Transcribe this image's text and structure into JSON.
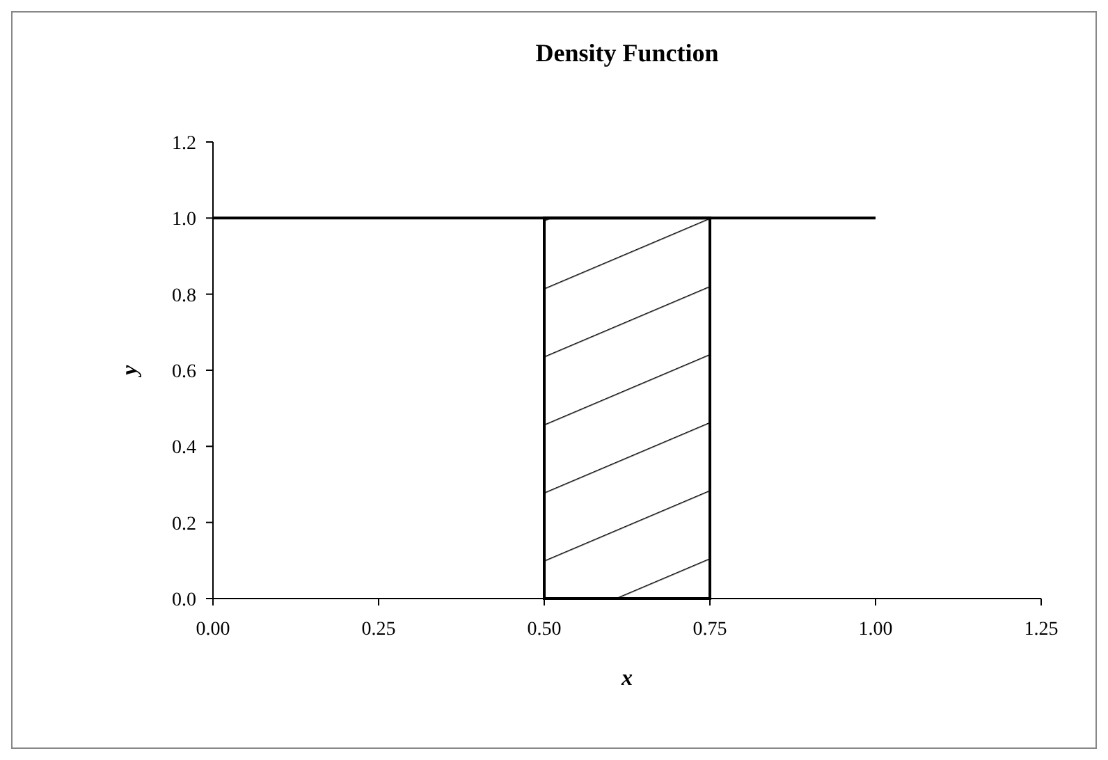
{
  "chart_data": {
    "type": "line",
    "title": "Density Function",
    "xlabel": "x",
    "ylabel": "y",
    "series": [
      {
        "color": "#000000",
        "x": [
          0,
          1
        ],
        "values": [
          1,
          1
        ]
      },
      {
        "type": "area",
        "color": "#000000",
        "x": [
          0.5,
          0.75
        ],
        "values": [
          1,
          1
        ]
      }
    ],
    "xlim": [
      0,
      1.25
    ],
    "xticks": [
      {
        "value": 0,
        "label": "0.00"
      },
      {
        "value": 0.25,
        "label": "0.25"
      },
      {
        "value": 0.5,
        "label": "0.50"
      },
      {
        "value": 0.75,
        "label": "0.75"
      },
      {
        "value": 1,
        "label": "1.00"
      },
      {
        "value": 1.25,
        "label": "1.25"
      }
    ],
    "ylim": [
      0,
      1.2
    ],
    "yticks": [
      {
        "value": 0,
        "label": "0.0"
      },
      {
        "value": 0.2,
        "label": "0.2"
      },
      {
        "value": 0.4,
        "label": "0.4"
      },
      {
        "value": 0.6,
        "label": "0.6"
      },
      {
        "value": 0.8,
        "label": "0.8"
      },
      {
        "value": 1,
        "label": "1.0"
      },
      {
        "value": 1.2,
        "label": "1.2"
      }
    ],
    "grid": false
  }
}
